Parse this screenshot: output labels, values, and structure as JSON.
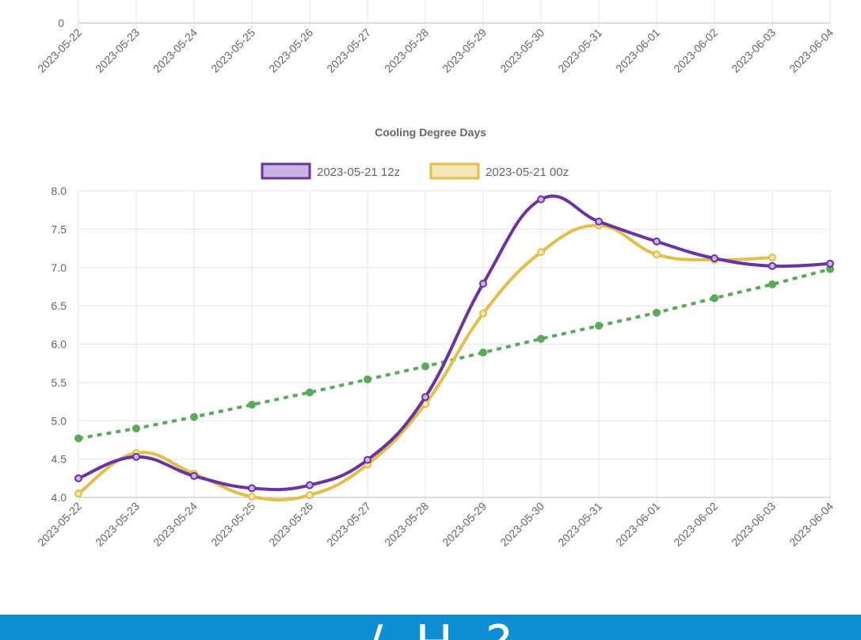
{
  "colors": {
    "grid": "#e5e5e5",
    "axis_text": "#666666",
    "footer": "#0e8ed3",
    "series_12z": "#6a33a3",
    "series_12z_fill": "#c9b4e4",
    "series_00z": "#e3be48",
    "series_00z_fill": "#f6e8ba",
    "trend": "#5aa85a"
  },
  "top_chart": {
    "y_tick_labels": [
      "0"
    ],
    "x_tick_labels": [
      "2023-05-22",
      "2023-05-23",
      "2023-05-24",
      "2023-05-25",
      "2023-05-26",
      "2023-05-27",
      "2023-05-28",
      "2023-05-29",
      "2023-05-30",
      "2023-05-31",
      "2023-06-01",
      "2023-06-02",
      "2023-06-03",
      "2023-06-04"
    ]
  },
  "footer": {
    "text": "  ·  /  H  ?"
  },
  "chart_data": {
    "type": "line",
    "title": "Cooling Degree Days",
    "xlabel": "",
    "ylabel": "",
    "x": [
      "2023-05-22",
      "2023-05-23",
      "2023-05-24",
      "2023-05-25",
      "2023-05-26",
      "2023-05-27",
      "2023-05-28",
      "2023-05-29",
      "2023-05-30",
      "2023-05-31",
      "2023-06-01",
      "2023-06-02",
      "2023-06-03",
      "2023-06-04"
    ],
    "ylim": [
      4.0,
      8.0
    ],
    "y_ticks": [
      4.0,
      4.5,
      5.0,
      5.5,
      6.0,
      6.5,
      7.0,
      7.5,
      8.0
    ],
    "y_tick_labels": [
      "4.0",
      "4.5",
      "5.0",
      "5.5",
      "6.0",
      "6.5",
      "7.0",
      "7.5",
      "8.0"
    ],
    "grid": true,
    "legend_position": "top",
    "series": [
      {
        "name": "2023-05-21 12z",
        "values": [
          4.25,
          4.53,
          4.28,
          4.12,
          4.16,
          4.49,
          5.31,
          6.79,
          7.89,
          7.6,
          7.34,
          7.12,
          7.02,
          7.05
        ],
        "color": "#6a33a3",
        "fill": "#c9b4e4",
        "style": "solid",
        "legend": true
      },
      {
        "name": "2023-05-21 00z",
        "values": [
          4.05,
          4.58,
          4.31,
          4.01,
          4.03,
          4.43,
          5.22,
          6.4,
          7.2,
          7.55,
          7.17,
          7.1,
          7.13,
          null
        ],
        "color": "#e3be48",
        "fill": "#f6e8ba",
        "style": "solid",
        "legend": true
      },
      {
        "values": [
          4.77,
          4.9,
          5.05,
          5.21,
          5.37,
          5.54,
          5.71,
          5.89,
          6.07,
          6.24,
          6.41,
          6.6,
          6.78,
          6.98
        ],
        "color": "#5aa85a",
        "fill": "#5aa85a",
        "style": "dotted",
        "legend": false
      }
    ]
  }
}
